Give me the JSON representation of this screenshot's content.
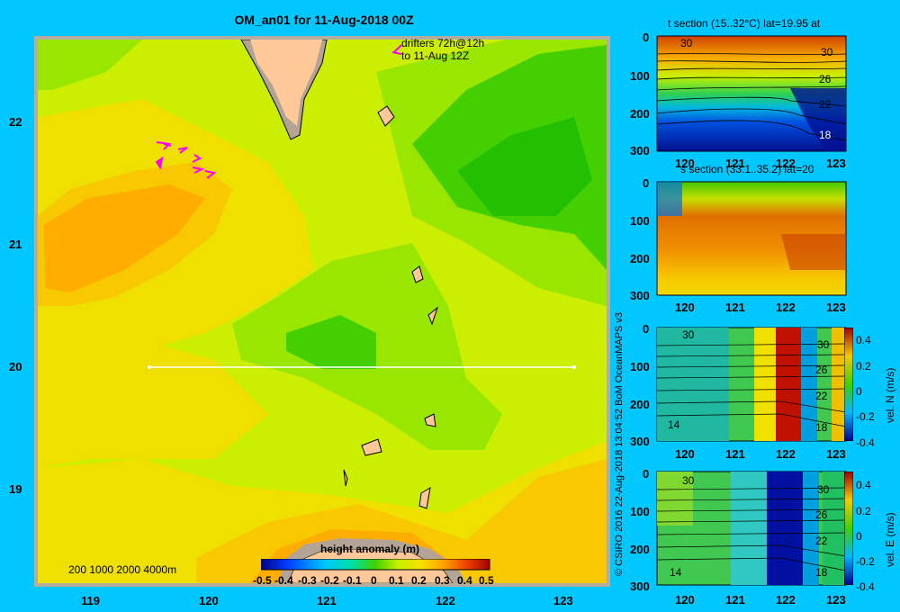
{
  "main_map": {
    "title": "OM_an01 for 11-Aug-2018 00Z",
    "drifters_line1": "drifters 72h@12h",
    "drifters_line2": "to 11-Aug 12Z",
    "x_ticks": [
      "119",
      "120",
      "121",
      "122",
      "123"
    ],
    "y_ticks": [
      "22",
      "21",
      "20",
      "19"
    ],
    "depth_legend": "200 1000 2000 4000m",
    "colorbar_title": "height anomaly (m)",
    "colorbar_ticks": [
      "-0.5",
      "-0.4",
      "-0.3",
      "-0.2",
      "-0.1",
      "0",
      "0.1",
      "0.2",
      "0.3",
      "0.4",
      "0.5"
    ]
  },
  "credit": "© CSIRO 2016   22-Aug-2018 13:04:52 BoM OceanMAPS v3",
  "panels": [
    {
      "id": "t",
      "title": "t section (15..32°C) lat=19.95 at",
      "contour_labels": [
        "30",
        "30",
        "26",
        "22",
        "18"
      ],
      "y_ticks": [
        "0",
        "100",
        "200",
        "300"
      ],
      "x_ticks": [
        "120",
        "121",
        "122",
        "123"
      ]
    },
    {
      "id": "s",
      "title": "s section (33.1..35.2) lat=20",
      "contour_labels": [],
      "y_ticks": [
        "0",
        "100",
        "200",
        "300"
      ],
      "x_ticks": [
        "120",
        "121",
        "122",
        "123"
      ]
    },
    {
      "id": "n",
      "title": "",
      "contour_labels": [
        "30",
        "30",
        "26",
        "22",
        "18",
        "14"
      ],
      "y_ticks": [
        "0",
        "100",
        "200",
        "300"
      ],
      "x_ticks": [
        "120",
        "121",
        "122",
        "123"
      ],
      "cbar_label": "vel. N (m/s)",
      "cbar_ticks": [
        "0.4",
        "0.2",
        "0",
        "-0.2",
        "-0.4"
      ]
    },
    {
      "id": "e",
      "title": "",
      "contour_labels": [
        "30",
        "30",
        "26",
        "22",
        "18",
        "14"
      ],
      "y_ticks": [
        "0",
        "100",
        "200",
        "300"
      ],
      "x_ticks": [
        "120",
        "121",
        "122",
        "123"
      ],
      "cbar_label": "vel. E (m/s)",
      "cbar_ticks": [
        "0.4",
        "0.2",
        "0",
        "-0.2",
        "-0.4"
      ]
    }
  ],
  "colors": {
    "background": "#00c8ff",
    "land": "#ffc898",
    "coast": "#b4a496"
  }
}
